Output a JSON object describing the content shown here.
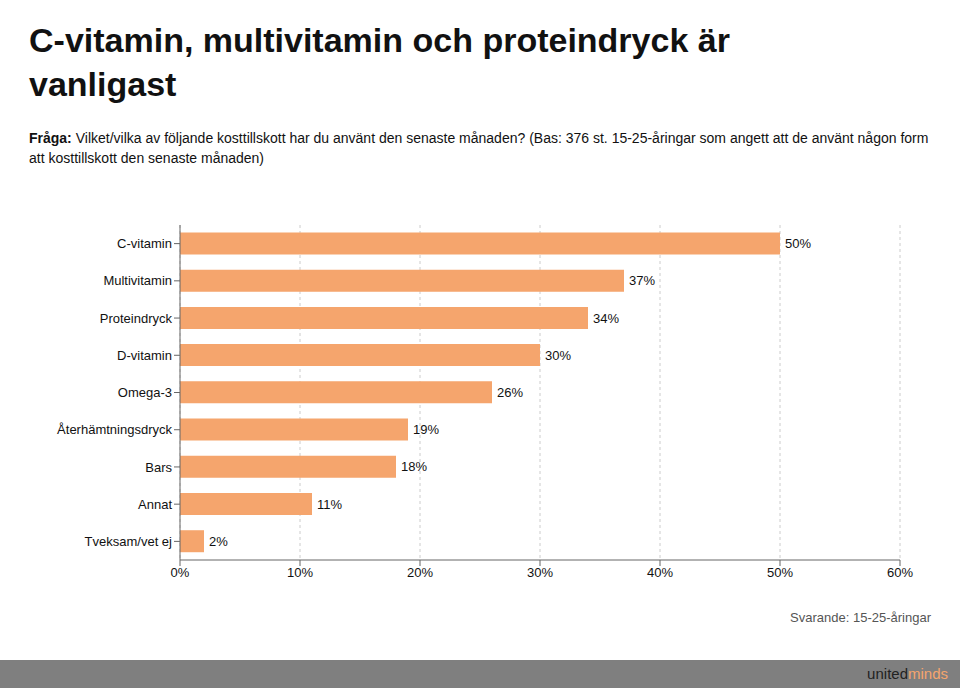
{
  "chart_data": {
    "type": "bar",
    "orientation": "horizontal",
    "title": [
      "C-vitamin, multivitamin och proteindryck är",
      "vanligast"
    ],
    "subtitle": [
      "Fråga:",
      " Vilket/vilka av följande kosttillskott har du använt den senaste månaden? (Bas: 376 st. 15-25-åringar som angett att de använt någon form att kosttillskott den senaste månaden)"
    ],
    "categories": [
      "C-vitamin",
      "Multivitamin",
      "Proteindryck",
      "D-vitamin",
      "Omega-3",
      "Återhämtningsdryck",
      "Bars",
      "Annat",
      "Tveksam/vet ej"
    ],
    "values": [
      50,
      37,
      34,
      30,
      26,
      19,
      18,
      11,
      2
    ],
    "value_labels": [
      "50%",
      "37%",
      "34%",
      "30%",
      "26%",
      "19%",
      "18%",
      "11%",
      "2%"
    ],
    "data_labels": true,
    "color": "#F5A56D",
    "xlim": [
      0,
      60
    ],
    "xticks": [
      {
        "value": 0,
        "label": "0%"
      },
      {
        "value": 10,
        "label": "10%"
      },
      {
        "value": 20,
        "label": "20%"
      },
      {
        "value": 30,
        "label": "30%"
      },
      {
        "value": 40,
        "label": "40%"
      },
      {
        "value": 50,
        "label": "50%"
      },
      {
        "value": 60,
        "label": "60%"
      }
    ],
    "grid": true,
    "annotations": [
      "Svarande: 15-25-åringar",
      "united",
      "minds"
    ]
  }
}
